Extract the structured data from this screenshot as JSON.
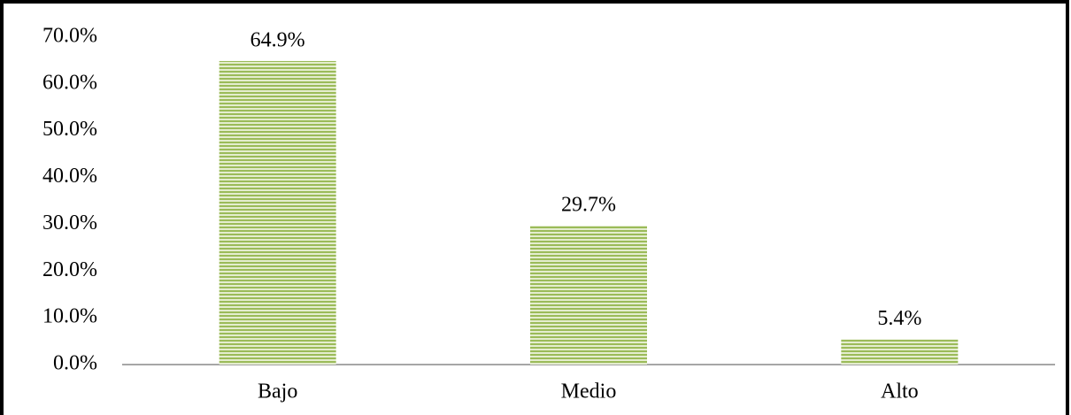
{
  "chart_data": {
    "type": "bar",
    "categories": [
      "Bajo",
      "Medio",
      "Alto"
    ],
    "values": [
      64.9,
      29.7,
      5.4
    ],
    "value_labels": [
      "64.9%",
      "29.7%",
      "5.4%"
    ],
    "color": "#9bbb59",
    "ylim": [
      0,
      70
    ],
    "yticks": [
      {
        "value": 0,
        "label": "0.0%"
      },
      {
        "value": 10,
        "label": "10.0%"
      },
      {
        "value": 20,
        "label": "20.0%"
      },
      {
        "value": 30,
        "label": "30.0%"
      },
      {
        "value": 40,
        "label": "40.0%"
      },
      {
        "value": 50,
        "label": "50.0%"
      },
      {
        "value": 60,
        "label": "60.0%"
      },
      {
        "value": 70,
        "label": "70.0%"
      }
    ],
    "grid": false
  }
}
